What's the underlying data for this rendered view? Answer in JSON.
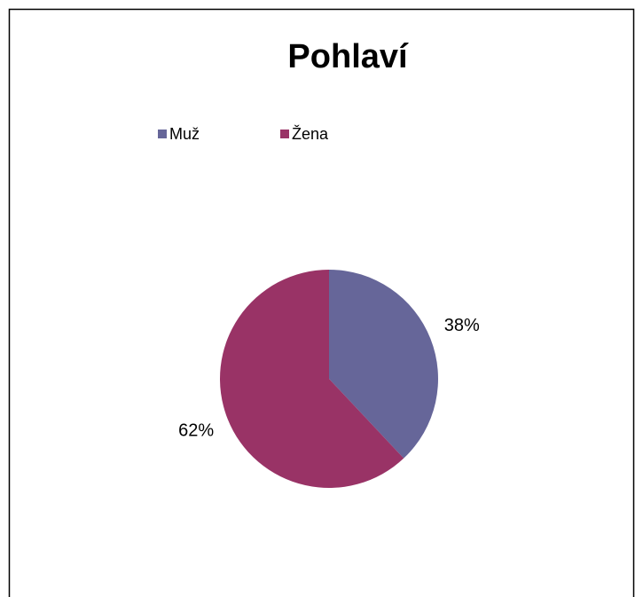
{
  "chart_data": {
    "type": "pie",
    "title": "Pohlaví",
    "categories": [
      "Muž",
      "Žena"
    ],
    "values": [
      38,
      62
    ],
    "value_labels": [
      "38%",
      "62%"
    ],
    "colors": [
      "#666699",
      "#993366"
    ],
    "legend": "top"
  }
}
